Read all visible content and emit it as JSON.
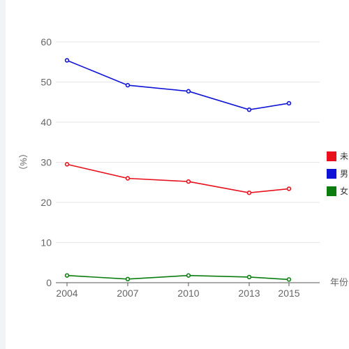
{
  "chart_data": {
    "type": "line",
    "title": "",
    "xlabel": "年份",
    "ylabel": "（%）",
    "x": [
      "2004",
      "2007",
      "2010",
      "2013",
      "2015"
    ],
    "ylim": [
      0,
      60
    ],
    "yticks": [
      0,
      10,
      20,
      30,
      40,
      50,
      60
    ],
    "grid": true,
    "legend_placement": "right",
    "series": [
      {
        "name": "未",
        "color": "#e8101c",
        "values": [
          29.5,
          26.0,
          25.2,
          22.4,
          23.4
        ]
      },
      {
        "name": "男",
        "color": "#0f13d6",
        "values": [
          55.4,
          49.2,
          47.7,
          43.1,
          44.7
        ]
      },
      {
        "name": "女",
        "color": "#0a7d0e",
        "values": [
          1.8,
          0.9,
          1.8,
          1.4,
          0.8
        ]
      }
    ]
  }
}
